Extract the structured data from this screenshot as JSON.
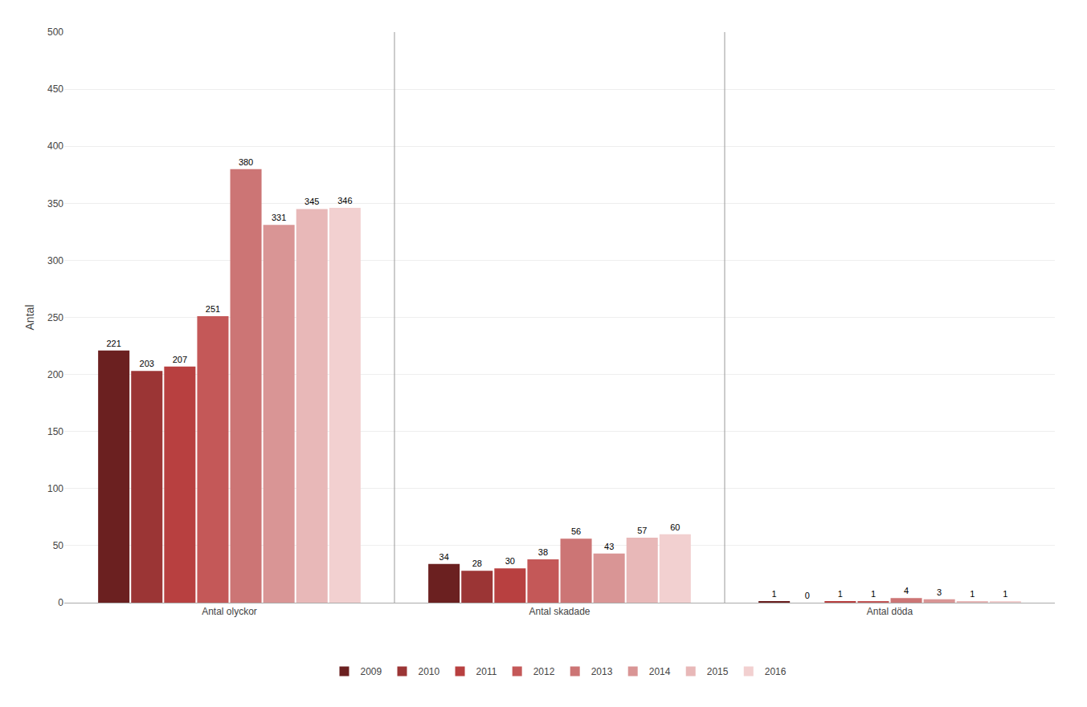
{
  "chart_data": {
    "type": "bar",
    "categories": [
      "Antal olyckor",
      "Antal skadade",
      "Antal döda"
    ],
    "series": [
      {
        "name": "2009",
        "color": "#6B2020",
        "values": [
          221,
          34,
          1
        ]
      },
      {
        "name": "2010",
        "color": "#9B3535",
        "values": [
          203,
          28,
          0
        ]
      },
      {
        "name": "2011",
        "color": "#B84040",
        "values": [
          207,
          30,
          1
        ]
      },
      {
        "name": "2012",
        "color": "#C45858",
        "values": [
          251,
          38,
          1
        ]
      },
      {
        "name": "2013",
        "color": "#CC7575",
        "values": [
          380,
          56,
          4
        ]
      },
      {
        "name": "2014",
        "color": "#D99595",
        "values": [
          331,
          43,
          3
        ]
      },
      {
        "name": "2015",
        "color": "#E8B8B8",
        "values": [
          345,
          57,
          1
        ]
      },
      {
        "name": "2016",
        "color": "#F2D0D0",
        "values": [
          346,
          60,
          1
        ]
      }
    ],
    "ylabel": "Antal",
    "ylim": [
      0,
      500
    ],
    "yticks": [
      0,
      50,
      100,
      150,
      200,
      250,
      300,
      350,
      400,
      450,
      500
    ],
    "grid": true,
    "data_labels": true,
    "legend": "bottom"
  }
}
